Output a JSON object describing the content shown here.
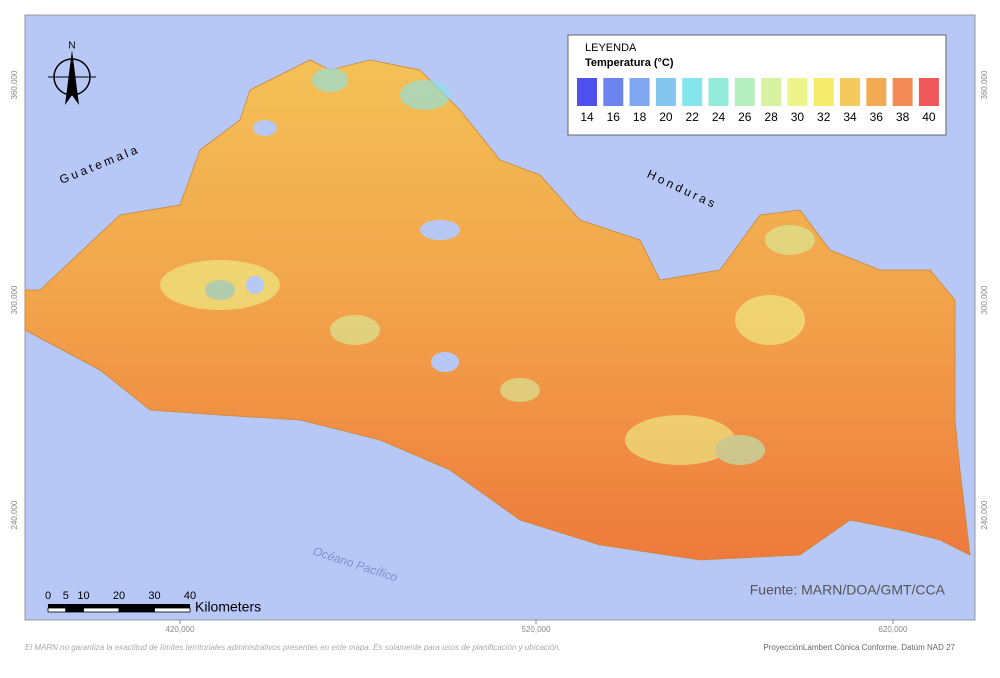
{
  "map": {
    "north": "N",
    "legend": {
      "title": "LEYENDA",
      "subtitle": "Temperatura (°C)",
      "items": [
        {
          "value": 14,
          "color": "#4f50f0"
        },
        {
          "value": 16,
          "color": "#6d84ef"
        },
        {
          "value": 18,
          "color": "#7fa6ee"
        },
        {
          "value": 20,
          "color": "#84c6f0"
        },
        {
          "value": 22,
          "color": "#86e6ee"
        },
        {
          "value": 24,
          "color": "#93ecd8"
        },
        {
          "value": 26,
          "color": "#b5efbf"
        },
        {
          "value": 28,
          "color": "#d6f2a0"
        },
        {
          "value": 30,
          "color": "#eef48c"
        },
        {
          "value": 32,
          "color": "#f6ea6a"
        },
        {
          "value": 34,
          "color": "#f5c95a"
        },
        {
          "value": 36,
          "color": "#f4aa52"
        },
        {
          "value": 38,
          "color": "#f48a55"
        },
        {
          "value": 40,
          "color": "#f0575a"
        }
      ]
    },
    "labels": {
      "guatemala": "Guatemala",
      "honduras": "Honduras",
      "ocean": "Océano Pacífico"
    },
    "scale": {
      "ticks": [
        0,
        5,
        10,
        20,
        30,
        40
      ],
      "unit": "Kilometers"
    },
    "source": "Fuente: MARN/DOA/GMT/CCA",
    "x_coords": [
      "420,000",
      "520,000",
      "620,000"
    ],
    "y_coords": [
      "360,000",
      "300,000",
      "240,000"
    ],
    "disclaimer": "El MARN no garantiza la exactitud de límites territoriales administrativos presentes en este mapa. Es solamente para usos de planificación y ubicación.",
    "projection": "ProyecciónLambert Cónica Conforme. Datúm NAD 27"
  }
}
